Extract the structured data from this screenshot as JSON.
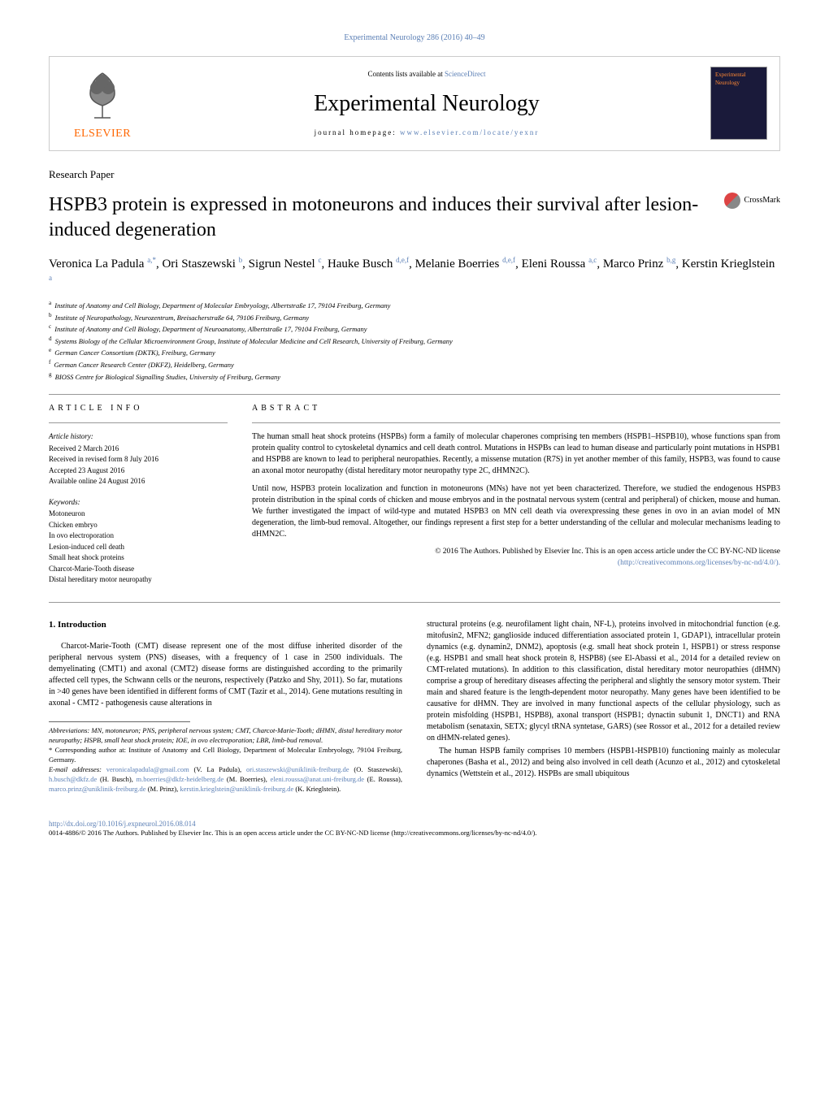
{
  "citation": "Experimental Neurology 286 (2016) 40–49",
  "header": {
    "contents_prefix": "Contents lists available at ",
    "contents_link": "ScienceDirect",
    "journal_name": "Experimental Neurology",
    "homepage_prefix": "journal homepage: ",
    "homepage_link": "www.elsevier.com/locate/yexnr",
    "publisher": "ELSEVIER",
    "cover_text": "Experimental Neurology"
  },
  "paper_type": "Research Paper",
  "title": "HSPB3 protein is expressed in motoneurons and induces their survival after lesion-induced degeneration",
  "crossmark": "CrossMark",
  "authors_html": "Veronica La Padula <sup>a,*</sup>, Ori Staszewski <sup>b</sup>, Sigrun Nestel <sup>c</sup>, Hauke Busch <sup>d,e,f</sup>, Melanie Boerries <sup>d,e,f</sup>, Eleni Roussa <sup>a,c</sup>, Marco Prinz <sup>b,g</sup>, Kerstin Krieglstein <sup>a</sup>",
  "affiliations": [
    "Institute of Anatomy and Cell Biology, Department of Molecular Embryology, Albertstraße 17, 79104 Freiburg, Germany",
    "Institute of Neuropathology, Neurozentrum, Breisacherstraße 64, 79106 Freiburg, Germany",
    "Institute of Anatomy and Cell Biology, Department of Neuroanatomy, Albertstraße 17, 79104 Freiburg, Germany",
    "Systems Biology of the Cellular Microenvironment Group, Institute of Molecular Medicine and Cell Research, University of Freiburg, Germany",
    "German Cancer Consortium (DKTK), Freiburg, Germany",
    "German Cancer Research Center (DKFZ), Heidelberg, Germany",
    "BIOSS Centre for Biological Signalling Studies, University of Freiburg, Germany"
  ],
  "aff_labels": [
    "a",
    "b",
    "c",
    "d",
    "e",
    "f",
    "g"
  ],
  "article_info": {
    "heading": "article info",
    "history_label": "Article history:",
    "received": "Received 2 March 2016",
    "revised": "Received in revised form 8 July 2016",
    "accepted": "Accepted 23 August 2016",
    "online": "Available online 24 August 2016",
    "keywords_label": "Keywords:",
    "keywords": [
      "Motoneuron",
      "Chicken embryo",
      "In ovo electroporation",
      "Lesion-induced cell death",
      "Small heat shock proteins",
      "Charcot-Marie-Tooth disease",
      "Distal hereditary motor neuropathy"
    ]
  },
  "abstract": {
    "heading": "abstract",
    "para1": "The human small heat shock proteins (HSPBs) form a family of molecular chaperones comprising ten members (HSPB1–HSPB10), whose functions span from protein quality control to cytoskeletal dynamics and cell death control. Mutations in HSPBs can lead to human disease and particularly point mutations in HSPB1 and HSPB8 are known to lead to peripheral neuropathies. Recently, a missense mutation (R7S) in yet another member of this family, HSPB3, was found to cause an axonal motor neuropathy (distal hereditary motor neuropathy type 2C, dHMN2C).",
    "para2": "Until now, HSPB3 protein localization and function in motoneurons (MNs) have not yet been characterized. Therefore, we studied the endogenous HSPB3 protein distribution in the spinal cords of chicken and mouse embryos and in the postnatal nervous system (central and peripheral) of chicken, mouse and human. We further investigated the impact of wild-type and mutated HSPB3 on MN cell death via overexpressing these genes in ovo in an avian model of MN degeneration, the limb-bud removal. Altogether, our findings represent a first step for a better understanding of the cellular and molecular mechanisms leading to dHMN2C.",
    "license1": "© 2016 The Authors. Published by Elsevier Inc. This is an open access article under the CC BY-NC-ND license",
    "license_link": "(http://creativecommons.org/licenses/by-nc-nd/4.0/)."
  },
  "introduction": {
    "heading": "1. Introduction",
    "col1_p1": "Charcot-Marie-Tooth (CMT) disease represent one of the most diffuse inherited disorder of the peripheral nervous system (PNS) diseases, with a frequency of 1 case in 2500 individuals. The demyelinating (CMT1) and axonal (CMT2) disease forms are distinguished according to the primarily affected cell types, the Schwann cells or the neurons, respectively (Patzko and Shy, 2011). So far, mutations in >40 genes have been identified in different forms of CMT (Tazir et al., 2014). Gene mutations resulting in axonal - CMT2 - pathogenesis cause alterations in",
    "col2_p1": "structural proteins (e.g. neurofilament light chain, NF-L), proteins involved in mitochondrial function (e.g. mitofusin2, MFN2; ganglioside induced differentiation associated protein 1, GDAP1), intracellular protein dynamics (e.g. dynamin2, DNM2), apoptosis (e.g. small heat shock protein 1, HSPB1) or stress response (e.g. HSPB1 and small heat shock protein 8, HSPB8) (see El-Abassi et al., 2014 for a detailed review on CMT-related mutations). In addition to this classification, distal hereditary motor neuropathies (dHMN) comprise a group of hereditary diseases affecting the peripheral and slightly the sensory motor system. Their main and shared feature is the length-dependent motor neuropathy. Many genes have been identified to be causative for dHMN. They are involved in many functional aspects of the cellular physiology, such as protein misfolding (HSPB1, HSPB8), axonal transport (HSPB1; dynactin subunit 1, DNCT1) and RNA metabolism (senataxin, SETX; glycyl tRNA syntetase, GARS) (see Rossor et al., 2012 for a detailed review on dHMN-related genes).",
    "col2_p2": "The human HSPB family comprises 10 members (HSPB1-HSPB10) functioning mainly as molecular chaperones (Basha et al., 2012) and being also involved in cell death (Acunzo et al., 2012) and cytoskeletal dynamics (Wettstein et al., 2012). HSPBs are small ubiquitous"
  },
  "footnotes": {
    "abbrev": "Abbreviations: MN, motoneuron; PNS, peripheral nervous system; CMT, Charcot-Marie-Tooth; dHMN, distal hereditary motor neuropathy; HSPB, small heat shock protein; IOE, in ovo electroporation; LBR, limb-bud removal.",
    "corresp": "* Corresponding author at: Institute of Anatomy and Cell Biology, Department of Molecular Embryology, 79104 Freiburg, Germany.",
    "emails_label": "E-mail addresses: ",
    "emails": [
      {
        "addr": "veronicalapadula@gmail.com",
        "who": " (V. La Padula),"
      },
      {
        "addr": "ori.staszewski@uniklinik-freiburg.de",
        "who": " (O. Staszewski), "
      },
      {
        "addr": "h.busch@dkfz.de",
        "who": " (H. Busch),"
      },
      {
        "addr": "m.boerries@dkfz-heidelberg.de",
        "who": " (M. Boerries), "
      },
      {
        "addr": "eleni.roussa@anat.uni-freiburg.de",
        "who": ""
      },
      {
        "addr": "",
        "who": "(E. Roussa), "
      },
      {
        "addr": "marco.prinz@uniklinik-freiburg.de",
        "who": " (M. Prinz),"
      },
      {
        "addr": "kerstin.krieglstein@uniklinik-freiburg.de",
        "who": " (K. Krieglstein)."
      }
    ]
  },
  "doi": "http://dx.doi.org/10.1016/j.expneurol.2016.08.014",
  "copyright": "0014-4886/© 2016 The Authors. Published by Elsevier Inc. This is an open access article under the CC BY-NC-ND license (http://creativecommons.org/licenses/by-nc-nd/4.0/)."
}
